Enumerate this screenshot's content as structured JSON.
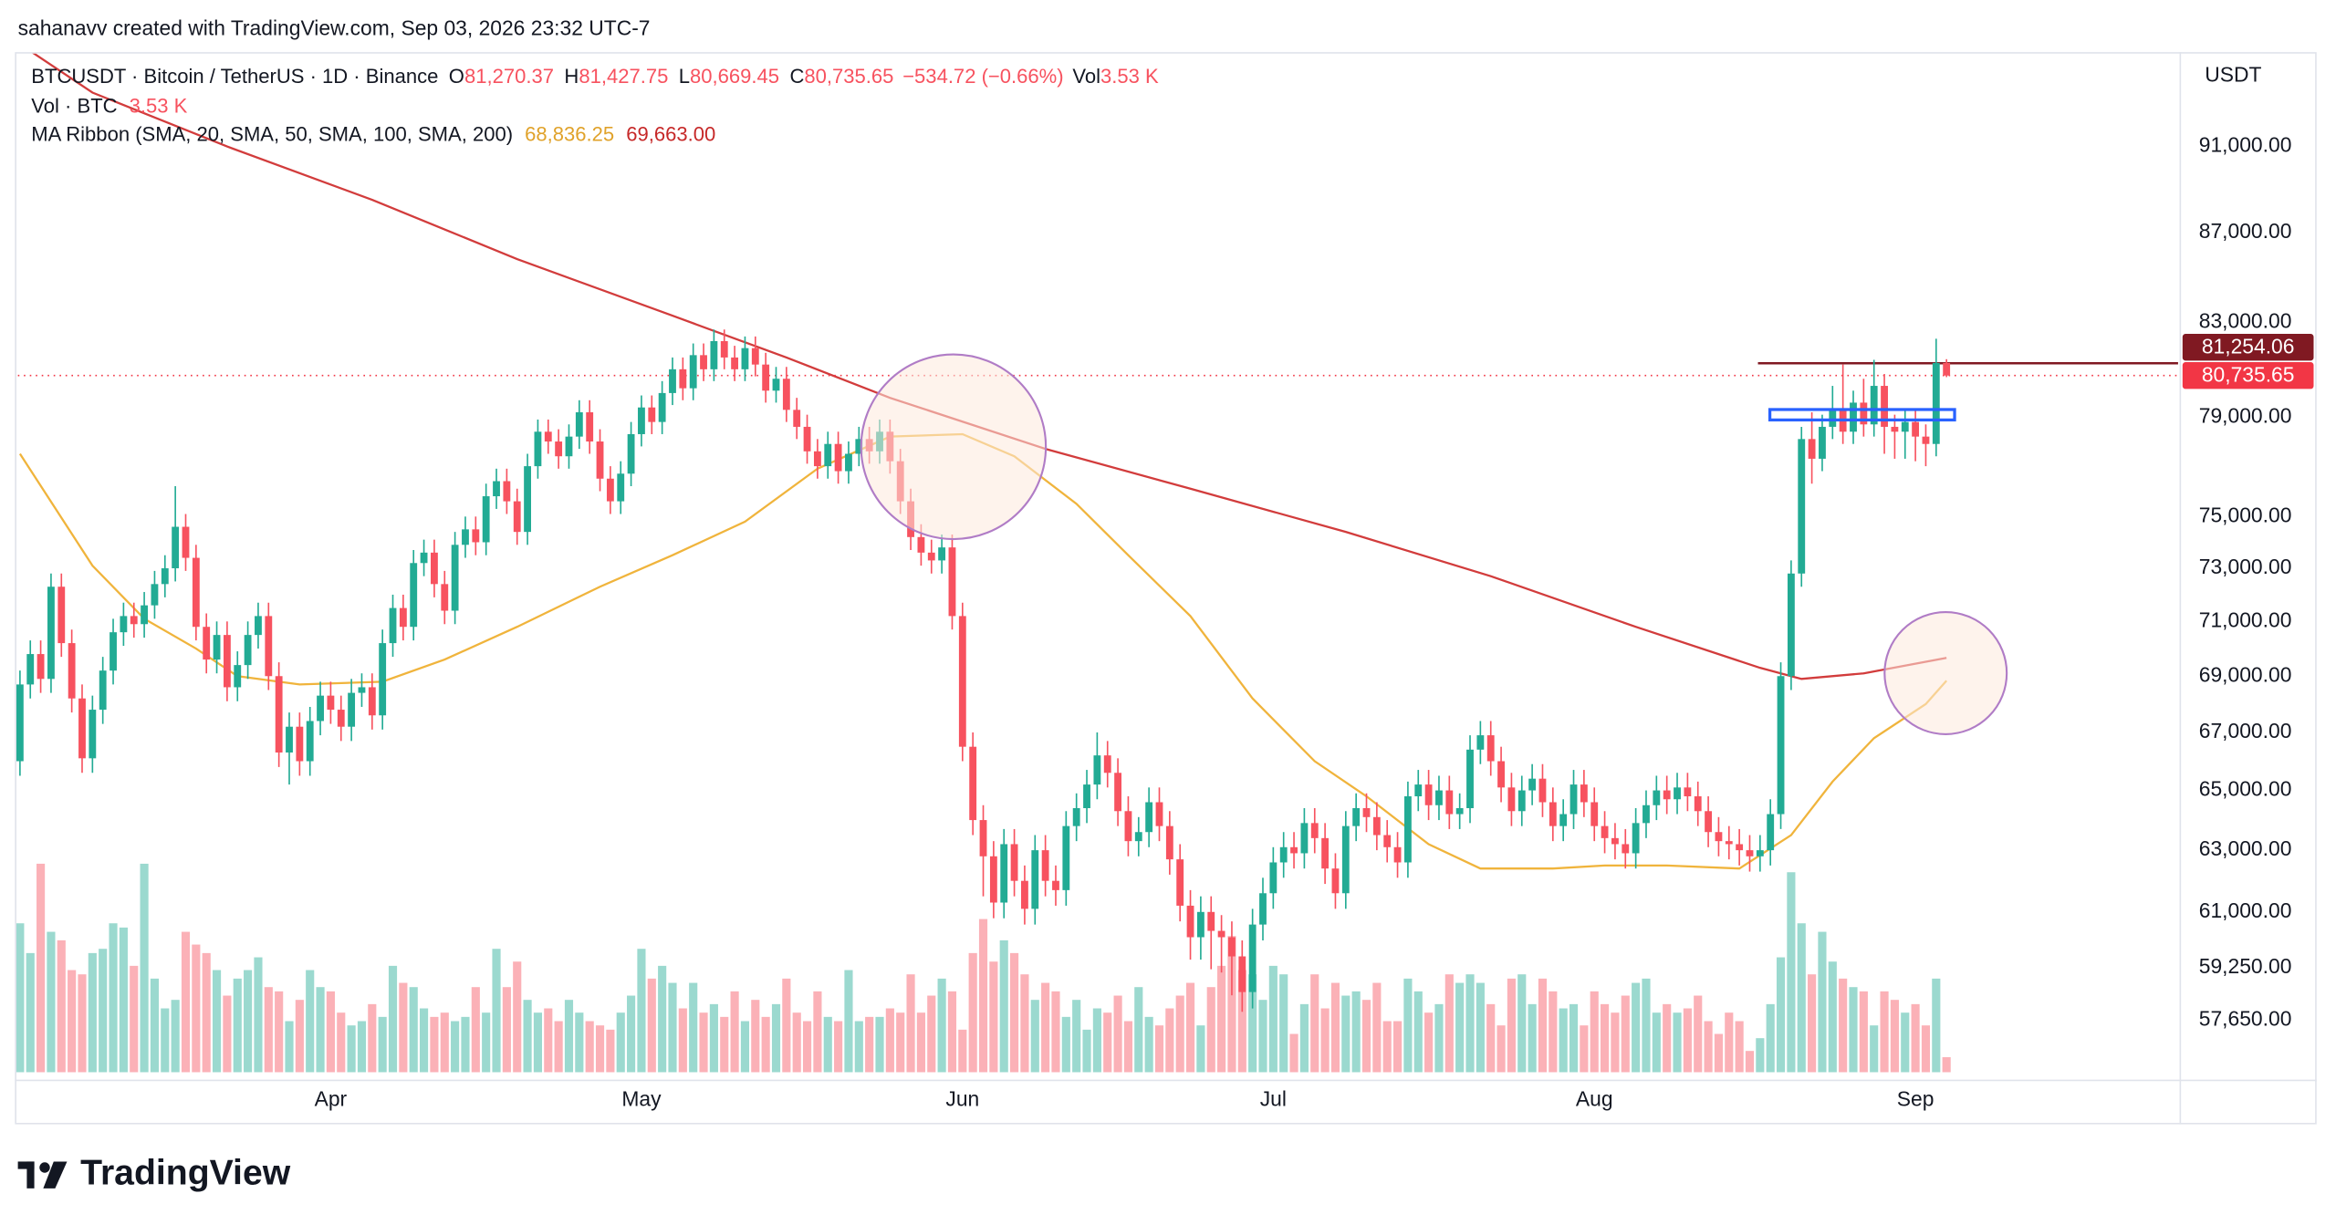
{
  "attribution": "sahanavv created with TradingView.com, Sep 03, 2026 23:32 UTC-7",
  "logo": "TradingView",
  "chart_data": {
    "type": "candlestick",
    "legend": {
      "symbol": "BTCUSDT · Bitcoin / TetherUS · 1D · Binance",
      "ohlc": [
        {
          "key": "O",
          "value": "81,270.37"
        },
        {
          "key": "H",
          "value": "81,427.75"
        },
        {
          "key": "L",
          "value": "80,669.45"
        },
        {
          "key": "C",
          "value": "80,735.65"
        }
      ],
      "change": "−534.72 (−0.66%)",
      "vol_key": "Vol",
      "vol_value": "3.53 K",
      "volume_title": "Vol · BTC",
      "volume_value": "3.53 K",
      "ma_title": "MA Ribbon (SMA, 20, SMA, 50, SMA, 100, SMA, 200)",
      "ma_values": [
        "68,836.25",
        "69,663.00"
      ]
    },
    "currency": "USDT",
    "up_color": "#22ab94",
    "down_color": "#f7525f",
    "log_scale": true,
    "grid": false,
    "xlim": [
      -0.2,
      208.5
    ],
    "xticks": [
      {
        "value": 30,
        "label": "Apr"
      },
      {
        "value": 60,
        "label": "May"
      },
      {
        "value": 91,
        "label": "Jun"
      },
      {
        "value": 121,
        "label": "Jul"
      },
      {
        "value": 152,
        "label": "Aug"
      },
      {
        "value": 183,
        "label": "Sep"
      }
    ],
    "ylim": [
      56100,
      95600
    ],
    "yticks": [
      {
        "value": 91000,
        "label": "91,000.00"
      },
      {
        "value": 87000,
        "label": "87,000.00"
      },
      {
        "value": 83000,
        "label": "83,000.00"
      },
      {
        "value": 79000,
        "label": "79,000.00"
      },
      {
        "value": 75000,
        "label": "75,000.00"
      },
      {
        "value": 73000,
        "label": "73,000.00"
      },
      {
        "value": 71000,
        "label": "71,000.00"
      },
      {
        "value": 69000,
        "label": "69,000.00"
      },
      {
        "value": 67000,
        "label": "67,000.00"
      },
      {
        "value": 65000,
        "label": "65,000.00"
      },
      {
        "value": 63000,
        "label": "63,000.00"
      },
      {
        "value": 61000,
        "label": "61,000.00"
      },
      {
        "value": 59250,
        "label": "59,250.00"
      },
      {
        "value": 57650,
        "label": "57,650.00"
      }
    ],
    "open": [
      66000,
      68700,
      69800,
      68900,
      72300,
      70200,
      68200,
      66100,
      67800,
      69200,
      70600,
      71200,
      70900,
      71600,
      72400,
      73000,
      74600,
      73400,
      70800,
      69600,
      70500,
      68600,
      69400,
      70500,
      71200,
      69000,
      66300,
      67200,
      66000,
      67400,
      68300,
      67800,
      67200,
      68400,
      68600,
      67600,
      70200,
      71500,
      70800,
      73200,
      73600,
      72400,
      71400,
      73900,
      74500,
      74000,
      75800,
      76400,
      75600,
      74400,
      77000,
      78400,
      78000,
      77400,
      78200,
      79200,
      78000,
      76500,
      75600,
      76700,
      78300,
      79400,
      78800,
      80000,
      81000,
      80200,
      81600,
      81000,
      82200,
      81500,
      81000,
      81900,
      81200,
      80100,
      80600,
      79300,
      78600,
      77600,
      77000,
      77900,
      76800,
      77500,
      78100,
      77600,
      78400,
      77200,
      75600,
      74200,
      73600,
      73300,
      73800,
      71200,
      66500,
      64000,
      62800,
      61300,
      63200,
      62000,
      61100,
      63000,
      62000,
      61700,
      63800,
      64400,
      65200,
      66200,
      65600,
      64300,
      63300,
      63600,
      64600,
      63800,
      62700,
      61200,
      60200,
      61000,
      60400,
      60200,
      59600,
      58500,
      60600,
      61600,
      62600,
      63100,
      62900,
      63900,
      63400,
      62400,
      61600,
      63800,
      64400,
      64100,
      63500,
      63100,
      62600,
      64800,
      65200,
      64500,
      65000,
      64200,
      64400,
      66400,
      66900,
      66000,
      65100,
      64300,
      65000,
      65400,
      64600,
      63800,
      64200,
      65200,
      64600,
      63800,
      63400,
      63200,
      62900,
      63900,
      64500,
      65000,
      64700,
      65100,
      64800,
      64300,
      63600,
      63300,
      63200,
      63000,
      62800,
      63000,
      64200,
      69000,
      72800,
      78100,
      77300,
      78600,
      79300,
      78400,
      79600,
      78700,
      80300,
      78600,
      78400,
      78800,
      78200,
      77900,
      81270.37
    ],
    "high": [
      69200,
      70300,
      70300,
      72800,
      72800,
      70700,
      68700,
      68300,
      69700,
      71100,
      71700,
      71700,
      72100,
      72900,
      73500,
      76200,
      75100,
      73900,
      71300,
      71000,
      71000,
      69900,
      71000,
      71700,
      71700,
      69500,
      67700,
      67700,
      67900,
      68800,
      68800,
      68300,
      68900,
      69100,
      69100,
      70700,
      72000,
      72000,
      73700,
      74100,
      74100,
      72900,
      74400,
      75000,
      75000,
      76300,
      76900,
      76900,
      76100,
      77500,
      78900,
      78900,
      78500,
      78700,
      79700,
      79700,
      78500,
      77000,
      77200,
      78800,
      79900,
      79900,
      80500,
      81500,
      81500,
      82100,
      82100,
      82700,
      82700,
      82000,
      82400,
      82400,
      81700,
      81100,
      81100,
      79800,
      79100,
      78100,
      78400,
      78400,
      78000,
      78600,
      78600,
      78900,
      78900,
      77700,
      76100,
      74700,
      74100,
      74300,
      74300,
      71700,
      67000,
      64500,
      63300,
      63700,
      63700,
      62500,
      63500,
      63500,
      62500,
      64300,
      64900,
      65700,
      67000,
      66700,
      66100,
      64800,
      64100,
      65100,
      65100,
      64300,
      63200,
      61700,
      61500,
      61500,
      60900,
      60700,
      60100,
      61100,
      62100,
      63100,
      63600,
      63600,
      64400,
      64400,
      63900,
      62900,
      64300,
      64900,
      64900,
      64600,
      64000,
      63600,
      65300,
      65700,
      65700,
      65500,
      65500,
      64900,
      66900,
      67400,
      67400,
      66500,
      65600,
      65500,
      65900,
      65900,
      65100,
      64700,
      65700,
      65700,
      65100,
      64300,
      63900,
      63700,
      64400,
      65000,
      65500,
      65500,
      65600,
      65600,
      65300,
      64800,
      64100,
      63800,
      63700,
      63500,
      63500,
      64700,
      69500,
      73300,
      78600,
      79200,
      79100,
      80300,
      81200,
      80100,
      80600,
      81400,
      80800,
      79100,
      79300,
      79300,
      78700,
      82300,
      81427.75
    ],
    "low": [
      65500,
      68200,
      68400,
      68400,
      69700,
      67700,
      65600,
      65600,
      67300,
      68700,
      70100,
      70400,
      70400,
      71100,
      71900,
      72500,
      72900,
      70300,
      69100,
      69100,
      68100,
      68100,
      68900,
      70000,
      68500,
      65800,
      65200,
      65500,
      65500,
      66900,
      67300,
      66700,
      66700,
      67900,
      67100,
      67100,
      69700,
      70300,
      70300,
      72700,
      71900,
      70900,
      70900,
      73400,
      73500,
      73500,
      75300,
      75100,
      73900,
      73900,
      76500,
      77500,
      76900,
      76900,
      77700,
      77500,
      76000,
      75100,
      75100,
      76200,
      77800,
      78300,
      78300,
      79500,
      79700,
      79700,
      80500,
      80500,
      81000,
      80500,
      80500,
      80700,
      79600,
      79600,
      78800,
      78100,
      77100,
      76500,
      76500,
      76300,
      76300,
      77000,
      77100,
      77100,
      76700,
      75100,
      73700,
      73100,
      72800,
      72800,
      70700,
      66000,
      63500,
      61500,
      60800,
      60800,
      61500,
      60600,
      60600,
      61500,
      61200,
      61200,
      63300,
      63900,
      64700,
      65100,
      63800,
      62800,
      62800,
      63100,
      63300,
      62200,
      60700,
      59500,
      59500,
      59200,
      59100,
      58400,
      57900,
      58000,
      60100,
      61100,
      62100,
      62400,
      62400,
      62900,
      61900,
      61100,
      61100,
      63300,
      63600,
      63000,
      62600,
      62100,
      62100,
      64300,
      64000,
      64000,
      63700,
      63700,
      63900,
      65900,
      65500,
      64600,
      63800,
      63800,
      64500,
      64100,
      63300,
      63300,
      63700,
      64100,
      63300,
      62900,
      62700,
      62400,
      62400,
      63400,
      64000,
      64200,
      64200,
      64300,
      63800,
      63100,
      62800,
      62700,
      62500,
      62300,
      62300,
      62500,
      63700,
      68500,
      72300,
      76300,
      76800,
      78100,
      77900,
      77900,
      78200,
      78200,
      77500,
      77300,
      77300,
      77200,
      77000,
      77400,
      80669.45
    ],
    "close": [
      68700,
      69800,
      68900,
      72300,
      70200,
      68200,
      66100,
      67800,
      69200,
      70600,
      71200,
      70900,
      71600,
      72400,
      73000,
      74600,
      73400,
      70800,
      69600,
      70500,
      68600,
      69400,
      70500,
      71200,
      69000,
      66300,
      67200,
      66000,
      67400,
      68300,
      67800,
      67200,
      68400,
      68600,
      67600,
      70200,
      71500,
      70800,
      73200,
      73600,
      72400,
      71400,
      73900,
      74500,
      74000,
      75800,
      76400,
      75600,
      74400,
      77000,
      78400,
      78000,
      77400,
      78200,
      79200,
      78000,
      76500,
      75600,
      76700,
      78300,
      79400,
      78800,
      80000,
      81000,
      80200,
      81600,
      81000,
      82200,
      81500,
      81000,
      81900,
      81200,
      80100,
      80600,
      79300,
      78600,
      77600,
      77000,
      77900,
      76800,
      77500,
      78100,
      77600,
      78400,
      77200,
      75600,
      74200,
      73600,
      73300,
      73800,
      71200,
      66500,
      64000,
      62800,
      61300,
      63200,
      62000,
      61100,
      63000,
      62000,
      61700,
      63800,
      64400,
      65200,
      66200,
      65600,
      64300,
      63300,
      63600,
      64600,
      63800,
      62700,
      61200,
      60200,
      61000,
      60400,
      60200,
      59600,
      58500,
      60600,
      61600,
      62600,
      63100,
      62900,
      63900,
      63400,
      62400,
      61600,
      63800,
      64400,
      64100,
      63500,
      63100,
      62600,
      64800,
      65200,
      64500,
      65000,
      64200,
      64400,
      66400,
      66900,
      66000,
      65100,
      64300,
      65000,
      65400,
      64600,
      63800,
      64200,
      65200,
      64600,
      63800,
      63400,
      63200,
      62900,
      63900,
      64500,
      65000,
      64700,
      65100,
      64800,
      64300,
      63600,
      63300,
      63200,
      63000,
      62800,
      63000,
      64200,
      69000,
      72800,
      78100,
      77300,
      78600,
      79300,
      78400,
      79600,
      78700,
      80300,
      78600,
      78400,
      78800,
      78200,
      77900,
      81270.37,
      80735.65
    ],
    "volume": [
      35,
      28,
      49,
      33,
      31,
      24,
      23,
      28,
      29,
      35,
      34,
      25,
      49,
      22,
      15,
      17,
      33,
      30,
      28,
      24,
      18,
      22,
      24,
      27,
      20,
      19,
      12,
      17,
      24,
      20,
      19,
      14,
      11,
      12,
      16,
      13,
      25,
      21,
      20,
      15,
      13,
      14,
      12,
      13,
      20,
      14,
      29,
      20,
      26,
      17,
      14,
      15,
      12,
      17,
      14,
      12,
      11,
      10,
      14,
      18,
      29,
      22,
      25,
      21,
      15,
      21,
      14,
      16,
      13,
      19,
      12,
      17,
      13,
      16,
      22,
      14,
      12,
      19,
      13,
      12,
      24,
      12,
      13,
      13,
      15,
      14,
      23,
      14,
      18,
      22,
      19,
      10,
      28,
      36,
      26,
      31,
      28,
      23,
      17,
      21,
      19,
      13,
      17,
      10,
      15,
      14,
      18,
      12,
      20,
      13,
      11,
      15,
      18,
      21,
      11,
      20,
      25,
      32,
      24,
      23,
      17,
      25,
      23,
      9,
      16,
      23,
      15,
      21,
      18,
      19,
      17,
      21,
      12,
      12,
      22,
      19,
      14,
      16,
      23,
      21,
      23,
      21,
      16,
      11,
      22,
      23,
      16,
      22,
      19,
      15,
      16,
      11,
      19,
      16,
      14,
      18,
      21,
      22,
      14,
      16,
      14,
      15,
      18,
      12,
      9,
      14,
      12,
      5,
      8,
      16,
      27,
      47,
      35,
      23,
      33,
      26,
      22,
      20,
      19,
      11,
      19,
      17,
      14,
      16,
      11,
      22,
      3.53
    ],
    "ma_series": [
      {
        "color": "#f0b43c",
        "x": [
          0,
          7,
          12,
          17,
          21,
          27,
          35,
          41,
          48,
          56,
          63,
          70,
          77,
          84,
          91,
          96,
          102,
          107,
          113,
          119,
          125,
          130,
          136,
          141,
          148,
          153,
          159,
          166,
          171,
          175,
          179,
          184,
          186
        ],
        "values": [
          77500,
          73100,
          71100,
          70000,
          69000,
          68700,
          68800,
          69600,
          70800,
          72300,
          73500,
          74800,
          76900,
          78200,
          78300,
          77400,
          75500,
          73500,
          71200,
          68200,
          66000,
          64800,
          63200,
          62400,
          62400,
          62500,
          62500,
          62400,
          63500,
          65300,
          66800,
          68000,
          68836.25
        ]
      },
      {
        "color": "#d23c3c",
        "x": [
          0,
          7,
          20,
          34,
          48,
          63,
          74,
          84,
          99,
          113,
          128,
          142,
          156,
          168,
          172,
          178,
          186
        ],
        "values": [
          96000,
          93600,
          91000,
          88500,
          85800,
          83300,
          81500,
          79800,
          77700,
          76100,
          74400,
          72700,
          70800,
          69300,
          68900,
          69100,
          69663
        ]
      }
    ],
    "price_lines": [
      {
        "value": 81254.06,
        "label": "81,254.06",
        "color": "#801922",
        "style": "solid"
      },
      {
        "value": 80735.65,
        "label": "80,735.65",
        "color": "#f23645",
        "style": "dotted"
      }
    ]
  }
}
